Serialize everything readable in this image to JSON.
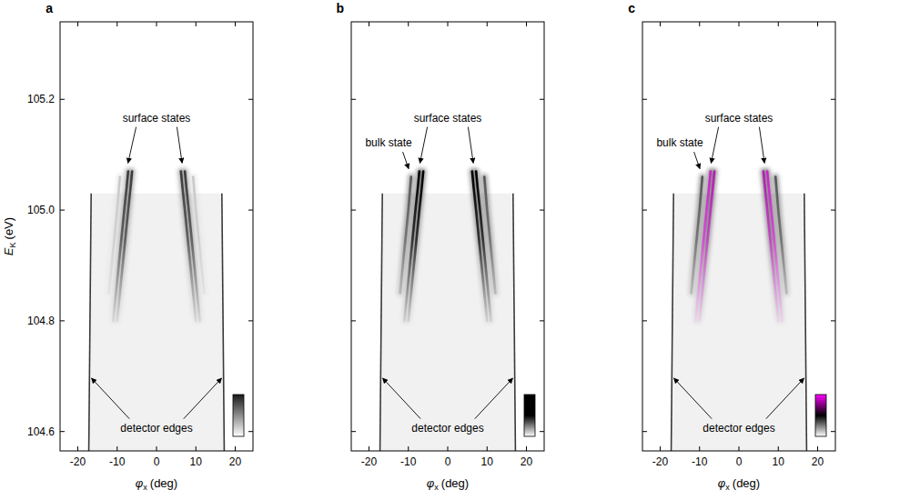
{
  "chart_data": [
    {
      "type": "line",
      "label": "a",
      "x_label": {
        "symbol": "φ",
        "subscript": "x",
        "unit": "(deg)"
      },
      "y_label": {
        "symbol": "E",
        "subscript": "K",
        "unit": "(eV)"
      },
      "xlim": [
        -24.5,
        24.5
      ],
      "ylim": [
        104.565,
        105.34
      ],
      "xticks": [
        -20,
        -10,
        0,
        10,
        20
      ],
      "yticks": [
        104.6,
        104.8,
        {
          "value": 105,
          "label": "105.0"
        },
        105.2
      ],
      "colors": [
        "#1a1a1a",
        "#ffffff"
      ],
      "series": [
        {
          "color": "#3a3a3a",
          "x": [
            -6.2,
            -6.6,
            -7.2,
            -7.9,
            -8.6,
            -9.3,
            -10.0
          ],
          "values": [
            105.07,
            105.04,
            105.0,
            104.95,
            104.9,
            104.85,
            104.8
          ]
        },
        {
          "color": "#3a3a3a",
          "x": [
            -7.2,
            -7.6,
            -8.2,
            -8.9,
            -9.6,
            -10.3,
            -11.0
          ],
          "values": [
            105.07,
            105.04,
            105.0,
            104.95,
            104.9,
            104.85,
            104.8
          ]
        },
        {
          "color": "#3a3a3a",
          "x": [
            6.2,
            6.6,
            7.2,
            7.9,
            8.6,
            9.3,
            10.0
          ],
          "values": [
            105.07,
            105.04,
            105.0,
            104.95,
            104.9,
            104.85,
            104.8
          ]
        },
        {
          "color": "#3a3a3a",
          "x": [
            7.2,
            7.6,
            8.2,
            8.9,
            9.6,
            10.3,
            11.0
          ],
          "values": [
            105.07,
            105.04,
            105.0,
            104.95,
            104.9,
            104.85,
            104.8
          ]
        },
        {
          "color": "#c8c8c8",
          "x": [
            -9.3,
            -10.0,
            -10.7,
            -11.4,
            -12.1
          ],
          "values": [
            105.06,
            105.0,
            104.95,
            104.9,
            104.85
          ]
        },
        {
          "color": "#c8c8c8",
          "x": [
            9.3,
            10.0,
            10.7,
            11.4,
            12.1
          ],
          "values": [
            105.06,
            105.0,
            104.95,
            104.9,
            104.85
          ]
        }
      ],
      "detector_edges": [
        {
          "x": [
            -16.6,
            -17.2
          ],
          "values": [
            105.03,
            104.565
          ]
        },
        {
          "x": [
            16.6,
            17.2
          ],
          "values": [
            105.03,
            104.565
          ]
        }
      ],
      "annotations": [
        {
          "text": "surface states",
          "x": 0,
          "y": 105.16,
          "targets": [
            {
              "x": -7.4,
              "y": 105.08
            },
            {
              "x": 6.6,
              "y": 105.08
            }
          ]
        },
        {
          "text": "detector edges",
          "x": 0,
          "y": 104.6,
          "targets": [
            {
              "x": -17,
              "y": 104.7
            },
            {
              "x": 17,
              "y": 104.7
            }
          ]
        }
      ]
    },
    {
      "type": "line",
      "label": "b",
      "x_label": {
        "symbol": "φ",
        "subscript": "x",
        "unit": "(deg)"
      },
      "xlim": [
        -24.5,
        24.5
      ],
      "ylim": [
        104.565,
        105.34
      ],
      "xticks": [
        -20,
        -10,
        0,
        10,
        20
      ],
      "yticks": [
        104.6,
        104.8,
        {
          "value": 105,
          "label": "105.0"
        },
        105.2
      ],
      "tick_labels": "x",
      "colors": [
        "#000000",
        "#000000",
        "#ffffff"
      ],
      "series": [
        {
          "color": "#000000",
          "x": [
            -6.2,
            -6.6,
            -7.2,
            -7.9,
            -8.6,
            -9.3,
            -10.0
          ],
          "values": [
            105.07,
            105.04,
            105.0,
            104.95,
            104.9,
            104.85,
            104.8
          ]
        },
        {
          "color": "#000000",
          "x": [
            -7.2,
            -7.6,
            -8.2,
            -8.9,
            -9.6,
            -10.3,
            -11.0
          ],
          "values": [
            105.07,
            105.04,
            105.0,
            104.95,
            104.9,
            104.85,
            104.8
          ]
        },
        {
          "color": "#000000",
          "x": [
            6.2,
            6.6,
            7.2,
            7.9,
            8.6,
            9.3,
            10.0
          ],
          "values": [
            105.07,
            105.04,
            105.0,
            104.95,
            104.9,
            104.85,
            104.8
          ]
        },
        {
          "color": "#000000",
          "x": [
            7.2,
            7.6,
            8.2,
            8.9,
            9.6,
            10.3,
            11.0
          ],
          "values": [
            105.07,
            105.04,
            105.0,
            104.95,
            104.9,
            104.85,
            104.8
          ]
        },
        {
          "color": "#555555",
          "x": [
            -9.3,
            -10.0,
            -10.7,
            -11.4,
            -12.1
          ],
          "values": [
            105.06,
            105.0,
            104.95,
            104.9,
            104.85
          ]
        },
        {
          "color": "#555555",
          "x": [
            9.3,
            10.0,
            10.7,
            11.4,
            12.1
          ],
          "values": [
            105.06,
            105.0,
            104.95,
            104.9,
            104.85
          ]
        }
      ],
      "detector_edges": [
        {
          "x": [
            -16.6,
            -17.2
          ],
          "values": [
            105.03,
            104.565
          ]
        },
        {
          "x": [
            16.6,
            17.2
          ],
          "values": [
            105.03,
            104.565
          ]
        }
      ],
      "annotations": [
        {
          "text": "surface states",
          "x": 0,
          "y": 105.16,
          "targets": [
            {
              "x": -7.2,
              "y": 105.08
            },
            {
              "x": 6.6,
              "y": 105.08
            }
          ]
        },
        {
          "text": "bulk state",
          "x": -15,
          "y": 105.115,
          "targets": [
            {
              "x": -9.7,
              "y": 105.07
            }
          ]
        },
        {
          "text": "detector edges",
          "x": 0,
          "y": 104.6,
          "targets": [
            {
              "x": -17,
              "y": 104.7
            },
            {
              "x": 17,
              "y": 104.7
            }
          ]
        }
      ]
    },
    {
      "type": "line",
      "label": "c",
      "x_label": {
        "symbol": "φ",
        "subscript": "x",
        "unit": "(deg)"
      },
      "xlim": [
        -24.5,
        24.5
      ],
      "ylim": [
        104.565,
        105.34
      ],
      "xticks": [
        -20,
        -10,
        0,
        10,
        20
      ],
      "yticks": [
        104.6,
        104.8,
        {
          "value": 105,
          "label": "105.0"
        },
        105.2
      ],
      "tick_labels": "x",
      "colors": [
        "#ff00ff",
        "#000000",
        "#ffffff"
      ],
      "series": [
        {
          "color": "#cc22cc",
          "x": [
            -6.2,
            -6.6,
            -7.2,
            -7.9,
            -8.6,
            -9.3,
            -10.0
          ],
          "values": [
            105.07,
            105.04,
            105.0,
            104.95,
            104.9,
            104.85,
            104.8
          ]
        },
        {
          "color": "#cc22cc",
          "x": [
            -7.2,
            -7.6,
            -8.2,
            -8.9,
            -9.6,
            -10.3,
            -11.0
          ],
          "values": [
            105.07,
            105.04,
            105.0,
            104.95,
            104.9,
            104.85,
            104.8
          ]
        },
        {
          "color": "#cc22cc",
          "x": [
            6.2,
            6.6,
            7.2,
            7.9,
            8.6,
            9.3,
            10.0
          ],
          "values": [
            105.07,
            105.04,
            105.0,
            104.95,
            104.9,
            104.85,
            104.8
          ]
        },
        {
          "color": "#cc22cc",
          "x": [
            7.2,
            7.6,
            8.2,
            8.9,
            9.6,
            10.3,
            11.0
          ],
          "values": [
            105.07,
            105.04,
            105.0,
            104.95,
            104.9,
            104.85,
            104.8
          ]
        },
        {
          "color": "#555555",
          "x": [
            -9.3,
            -10.0,
            -10.7,
            -11.4,
            -12.1
          ],
          "values": [
            105.06,
            105.0,
            104.95,
            104.9,
            104.85
          ]
        },
        {
          "color": "#555555",
          "x": [
            9.3,
            10.0,
            10.7,
            11.4,
            12.1
          ],
          "values": [
            105.06,
            105.0,
            104.95,
            104.9,
            104.85
          ]
        }
      ],
      "detector_edges": [
        {
          "x": [
            -16.6,
            -17.2
          ],
          "values": [
            105.03,
            104.565
          ]
        },
        {
          "x": [
            16.6,
            17.2
          ],
          "values": [
            105.03,
            104.565
          ]
        }
      ],
      "annotations": [
        {
          "text": "surface states",
          "x": 0,
          "y": 105.16,
          "targets": [
            {
              "x": -7.2,
              "y": 105.08
            },
            {
              "x": 6.6,
              "y": 105.08
            }
          ]
        },
        {
          "text": "bulk state",
          "x": -15,
          "y": 105.115,
          "targets": [
            {
              "x": -9.7,
              "y": 105.07
            }
          ]
        },
        {
          "text": "detector edges",
          "x": 0,
          "y": 104.6,
          "targets": [
            {
              "x": -17,
              "y": 104.7
            },
            {
              "x": 17,
              "y": 104.7
            }
          ]
        }
      ]
    }
  ]
}
